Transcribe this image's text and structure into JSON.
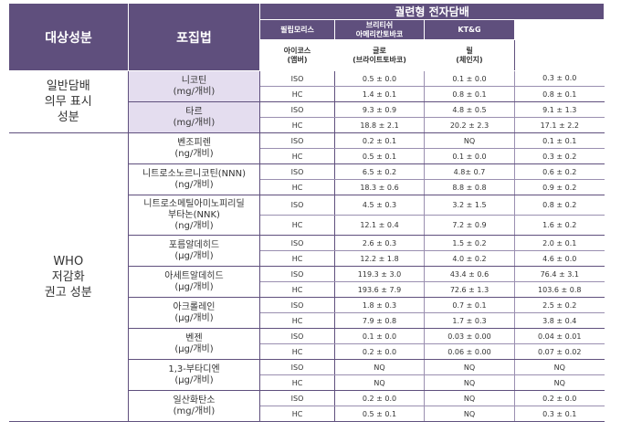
{
  "header": {
    "component_col": "대상성분",
    "method_col": "포집법",
    "group_title": "궐련형 전자담배",
    "companies": [
      "필립모리스",
      "브리티쉬\n아메리칸토바코",
      "KT&G"
    ],
    "products": [
      "아이코스\n(앰버)",
      "글로\n(브라이트토바코)",
      "릴\n(체인지)"
    ]
  },
  "categories": [
    {
      "label": "일반담배\n의무 표시\n성분"
    },
    {
      "label": "WHO\n저감화\n권고 성분"
    }
  ],
  "rows": [
    {
      "name": "니코틴\n(mg/개비)",
      "methods": [
        "ISO",
        "HC"
      ],
      "values": [
        [
          "0.5 ± 0.0",
          "0.1 ± 0.0",
          "0.3 ± 0.0"
        ],
        [
          "1.4 ± 0.1",
          "0.8 ± 0.1",
          "0.8 ± 0.1"
        ]
      ]
    },
    {
      "name": "타르\n(mg/개비)",
      "methods": [
        "ISO",
        "HC"
      ],
      "values": [
        [
          "9.3 ± 0.9",
          "4.8 ± 0.5",
          "9.1 ± 1.3"
        ],
        [
          "18.8 ± 2.1",
          "20.2 ± 2.3",
          "17.1 ± 2.2"
        ]
      ]
    },
    {
      "name": "벤조피렌\n(ng/개비)",
      "methods": [
        "ISO",
        "HC"
      ],
      "values": [
        [
          "0.2 ± 0.1",
          "NQ",
          "0.1 ± 0.1"
        ],
        [
          "0.5 ± 0.1",
          "0.1 ± 0.0",
          "0.3 ± 0.2"
        ]
      ]
    },
    {
      "name": "니트로소노르니코틴(NNN)\n(ng/개비)",
      "methods": [
        "ISO",
        "HC"
      ],
      "values": [
        [
          "6.5 ± 0.2",
          "4.8± 0.7",
          "0.6 ± 0.2"
        ],
        [
          "18.3 ± 0.6",
          "8.8 ± 0.8",
          "0.9 ± 0.2"
        ]
      ]
    },
    {
      "name": "니트로소메틸아미노피리딜\n부타논(NNK)\n(ng/개비)",
      "methods": [
        "ISO",
        "HC"
      ],
      "values": [
        [
          "4.5 ± 0.3",
          "3.2 ± 1.5",
          "0.8 ± 0.2"
        ],
        [
          "12.1 ± 0.4",
          "7.2 ± 0.9",
          "1.6 ± 0.2"
        ]
      ]
    },
    {
      "name": "포름알데히드\n(μg/개비)",
      "methods": [
        "ISO",
        "HC"
      ],
      "values": [
        [
          "2.6 ± 0.3",
          "1.5 ± 0.2",
          "2.0 ± 0.1"
        ],
        [
          "12.2 ± 1.8",
          "4.0 ± 0.2",
          "4.6 ± 0.0"
        ]
      ]
    },
    {
      "name": "아세트알데히드\n(μg/개비)",
      "methods": [
        "ISO",
        "HC"
      ],
      "values": [
        [
          "119.3 ± 3.0",
          "43.4 ± 0.6",
          "76.4 ± 3.1"
        ],
        [
          "193.6 ± 7.9",
          "72.6 ± 1.3",
          "103.6 ± 0.8"
        ]
      ]
    },
    {
      "name": "아크롤레인\n(μg/개비)",
      "methods": [
        "ISO",
        "HC"
      ],
      "values": [
        [
          "1.8 ± 0.3",
          "0.7 ± 0.1",
          "2.5 ± 0.2"
        ],
        [
          "7.9 ± 0.8",
          "1.7 ± 0.3",
          "3.8 ± 0.4"
        ]
      ]
    },
    {
      "name": "벤젠\n(μg/개비)",
      "methods": [
        "ISO",
        "HC"
      ],
      "values": [
        [
          "0.1 ± 0.0",
          "0.03 ± 0.00",
          "0.04 ± 0.01"
        ],
        [
          "0.2 ± 0.0",
          "0.06 ± 0.00",
          "0.07 ± 0.02"
        ]
      ]
    },
    {
      "name": "1,3-부타디엔\n(μg/개비)",
      "methods": [
        "ISO",
        "HC"
      ],
      "values": [
        [
          "NQ",
          "NQ",
          "NQ"
        ],
        [
          "NQ",
          "NQ",
          "NQ"
        ]
      ]
    },
    {
      "name": "일산화탄소\n(mg/개비)",
      "methods": [
        "ISO",
        "HC"
      ],
      "values": [
        [
          "0.2 ± 0.0",
          "NQ",
          "0.2 ± 0.0"
        ],
        [
          "0.5 ± 0.1",
          "NQ",
          "0.3 ± 0.1"
        ]
      ]
    }
  ],
  "colors": {
    "header_bg": "#5f4f7d",
    "shade": "#e4ddef",
    "rule": "#9a8fb0"
  }
}
